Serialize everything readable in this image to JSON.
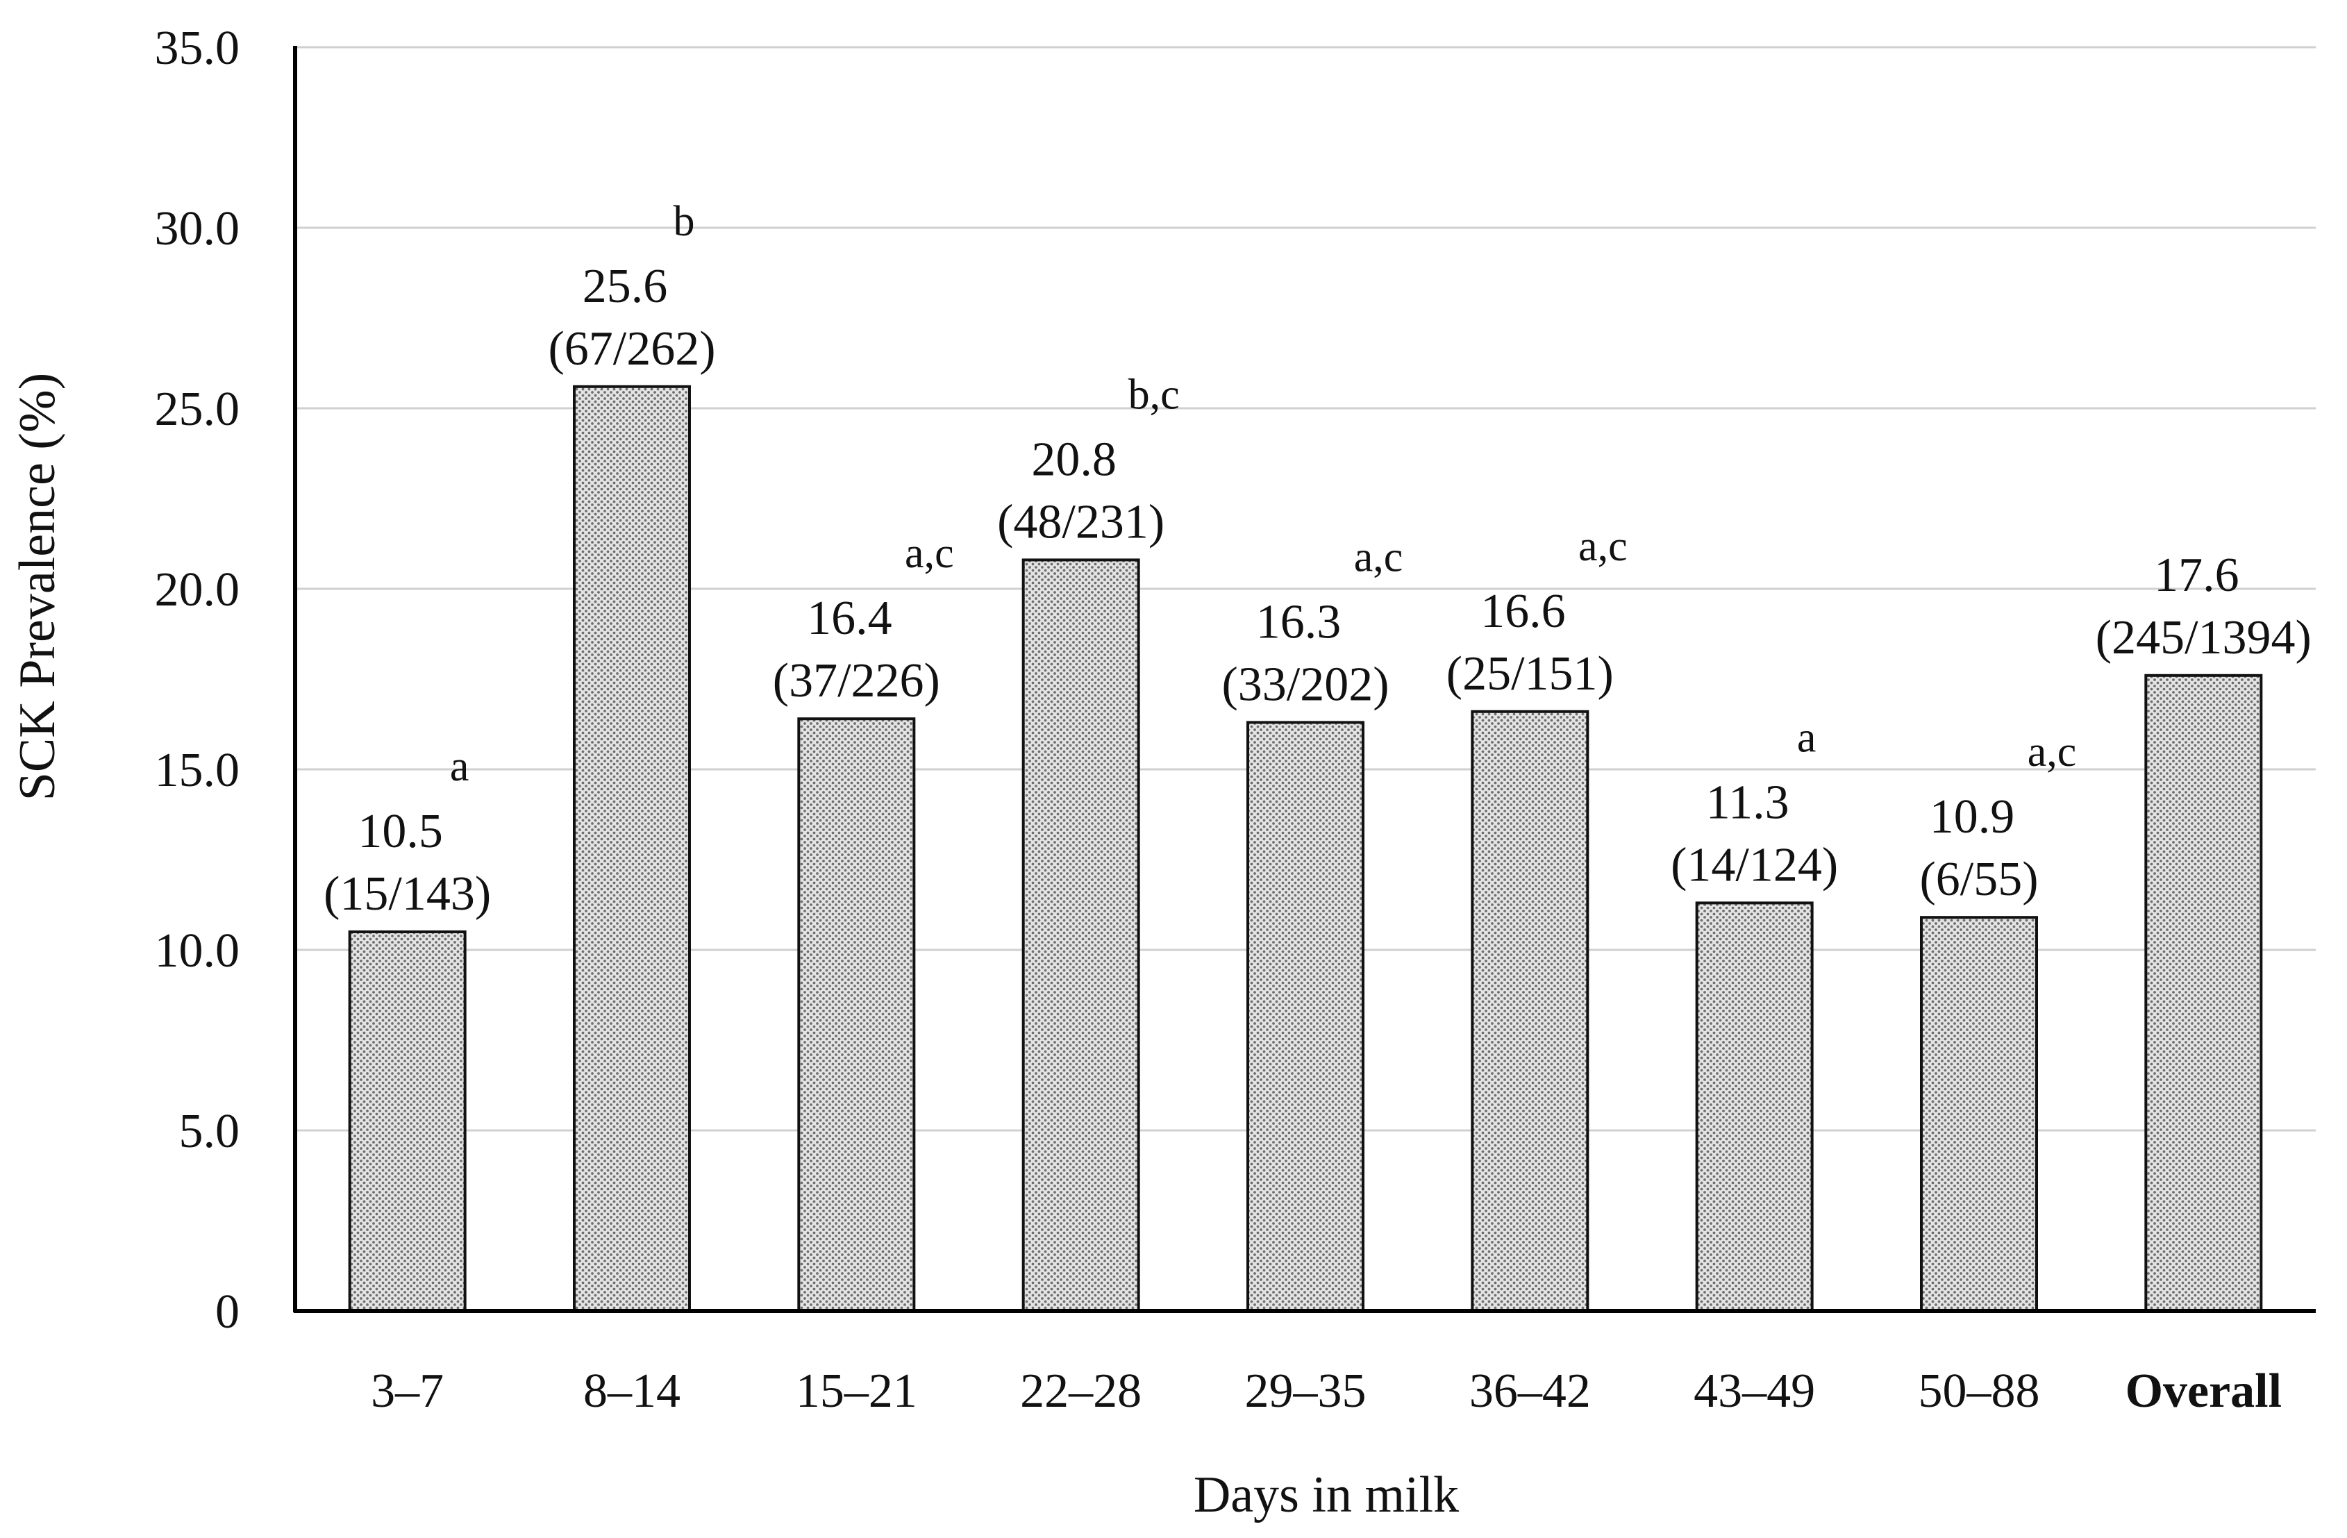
{
  "chart_data": {
    "type": "bar",
    "title": "",
    "xlabel": "Days in milk",
    "ylabel": "SCK Prevalence (%)",
    "ylim": [
      0,
      35
    ],
    "yticks": [
      "0",
      "5.0",
      "10.0",
      "15.0",
      "20.0",
      "25.0",
      "30.0",
      "35.0"
    ],
    "grid": true,
    "categories": [
      "3–7",
      "8–14",
      "15–21",
      "22–28",
      "29–35",
      "36–42",
      "43–49",
      "50–88",
      "Overall"
    ],
    "values": [
      10.5,
      25.6,
      16.4,
      20.8,
      16.3,
      16.6,
      11.3,
      10.9,
      17.6
    ],
    "value_labels": [
      "10.5",
      "25.6",
      "16.4",
      "20.8",
      "16.3",
      "16.6",
      "11.3",
      "10.9",
      "17.6"
    ],
    "counts": [
      "(15/143)",
      "(67/262)",
      "(37/226)",
      "(48/231)",
      "(33/202)",
      "(25/151)",
      "(14/124)",
      "(6/55)",
      "(245/1394)"
    ],
    "significance": [
      "a",
      "b",
      "a,c",
      "b,c",
      "a,c",
      "a,c",
      "a",
      "a,c",
      ""
    ]
  }
}
